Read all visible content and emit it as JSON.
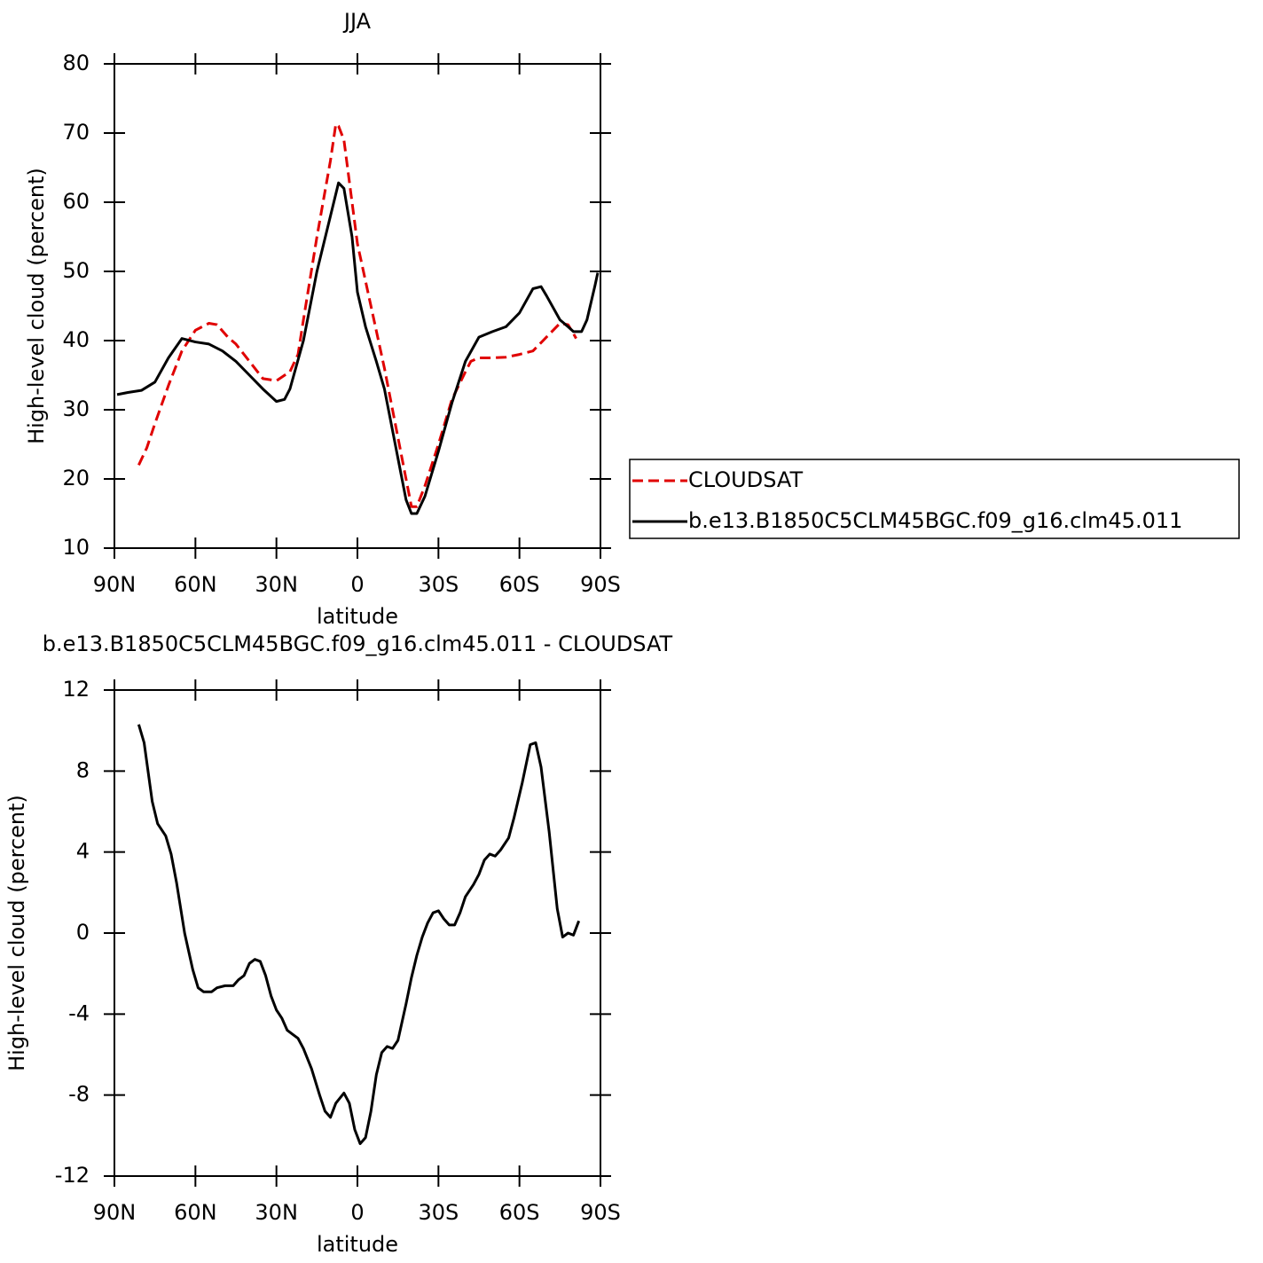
{
  "chart_data": [
    {
      "type": "line",
      "title": "JJA",
      "xlabel": "latitude",
      "ylabel": "High-level cloud (percent)",
      "xlim": [
        90,
        -90
      ],
      "xticks": [
        {
          "value": 90,
          "label": "90N"
        },
        {
          "value": 60,
          "label": "60N"
        },
        {
          "value": 30,
          "label": "30N"
        },
        0,
        {
          "value": -30,
          "label": "30S"
        },
        {
          "value": -60,
          "label": "60S"
        },
        {
          "value": -90,
          "label": "90S"
        }
      ],
      "ylim": [
        10,
        80
      ],
      "yticks": [
        10,
        20,
        30,
        40,
        50,
        60,
        70,
        80
      ],
      "legend": "right",
      "series": [
        {
          "name": "CLOUDSAT",
          "color": "#e00000",
          "dashed": true,
          "x": [
            81,
            78,
            75,
            70,
            65,
            60,
            55,
            52,
            48,
            45,
            40,
            35,
            30,
            25,
            22,
            20,
            15,
            10,
            8,
            7,
            5,
            2,
            0,
            -5,
            -10,
            -15,
            -18,
            -20,
            -22,
            -25,
            -30,
            -35,
            -40,
            -42,
            -45,
            -50,
            -55,
            -60,
            -65,
            -70,
            -75,
            -78,
            -80,
            -81
          ],
          "values": [
            22,
            24.5,
            28,
            33.5,
            38.5,
            41.5,
            42.5,
            42.3,
            40.5,
            39.5,
            37,
            34.5,
            34.2,
            35.5,
            38,
            43,
            55,
            66,
            71.3,
            71,
            69,
            60,
            54,
            45,
            36,
            26,
            20,
            16,
            16,
            19,
            25,
            31.5,
            35.5,
            37,
            37.5,
            37.5,
            37.6,
            38,
            38.5,
            40.5,
            42.5,
            42.3,
            41,
            40.3
          ]
        },
        {
          "name": "b.e13.B1850C5CLM45BGC.f09_g16.clm45.011",
          "color": "#000000",
          "dashed": false,
          "x": [
            89,
            85,
            80,
            75,
            70,
            65,
            60,
            55,
            50,
            45,
            40,
            35,
            30,
            27,
            25,
            20,
            15,
            10,
            7,
            5,
            2,
            0,
            -3,
            -7,
            -10,
            -13,
            -16,
            -18,
            -20,
            -22,
            -25,
            -30,
            -35,
            -40,
            -45,
            -50,
            -55,
            -60,
            -65,
            -68,
            -70,
            -75,
            -78,
            -80,
            -83,
            -85,
            -88,
            -89
          ],
          "values": [
            32.2,
            32.5,
            32.8,
            34,
            37.5,
            40.3,
            39.8,
            39.5,
            38.5,
            37,
            35,
            33,
            31.2,
            31.5,
            33,
            40,
            50,
            58,
            62.8,
            62,
            55,
            47,
            42,
            37,
            33,
            27,
            21,
            17,
            15,
            15,
            17.5,
            24,
            31,
            37,
            40.5,
            41.3,
            42,
            44,
            47.5,
            47.8,
            46.5,
            43,
            42,
            41.3,
            41.3,
            43,
            48,
            49.8
          ]
        }
      ]
    },
    {
      "type": "line",
      "title": "b.e13.B1850C5CLM45BGC.f09_g16.clm45.011 - CLOUDSAT",
      "xlabel": "latitude",
      "ylabel": "High-level cloud (percent)",
      "xlim": [
        90,
        -90
      ],
      "xticks": [
        {
          "value": 90,
          "label": "90N"
        },
        {
          "value": 60,
          "label": "60N"
        },
        {
          "value": 30,
          "label": "30N"
        },
        0,
        {
          "value": -30,
          "label": "30S"
        },
        {
          "value": -60,
          "label": "60S"
        },
        {
          "value": -90,
          "label": "90S"
        }
      ],
      "ylim": [
        -12,
        12
      ],
      "yticks": [
        -12,
        -8,
        -4,
        0,
        4,
        8,
        12
      ],
      "series": [
        {
          "color": "#000000",
          "dashed": false,
          "x": [
            81,
            79,
            76,
            74,
            71,
            69,
            67,
            64,
            61,
            59,
            57,
            54,
            52,
            49,
            46,
            44,
            42,
            40,
            38,
            36,
            34,
            32,
            30,
            28,
            26,
            24,
            22,
            20,
            17,
            14,
            12,
            10,
            8,
            5,
            3,
            1,
            -1,
            -3,
            -5,
            -7,
            -9,
            -11,
            -13,
            -15,
            -18,
            -20,
            -22,
            -24,
            -26,
            -28,
            -30,
            -32,
            -34,
            -36,
            -38,
            -40,
            -43,
            -45,
            -47,
            -49,
            -51,
            -53,
            -56,
            -58,
            -61,
            -64,
            -66,
            -68,
            -71,
            -74,
            -76,
            -78,
            -80,
            -82
          ],
          "values": [
            10.3,
            9.4,
            6.5,
            5.4,
            4.8,
            3.9,
            2.5,
            0,
            -1.8,
            -2.7,
            -2.9,
            -2.9,
            -2.7,
            -2.6,
            -2.6,
            -2.3,
            -2.1,
            -1.5,
            -1.3,
            -1.4,
            -2.1,
            -3.1,
            -3.8,
            -4.2,
            -4.8,
            -5,
            -5.2,
            -5.7,
            -6.7,
            -8,
            -8.8,
            -9.1,
            -8.4,
            -7.9,
            -8.4,
            -9.7,
            -10.4,
            -10.1,
            -8.8,
            -7,
            -5.9,
            -5.6,
            -5.7,
            -5.3,
            -3.5,
            -2.2,
            -1.1,
            -0.2,
            0.5,
            1,
            1.1,
            0.7,
            0.4,
            0.4,
            1,
            1.8,
            2.4,
            2.9,
            3.6,
            3.9,
            3.8,
            4.1,
            4.7,
            5.7,
            7.4,
            9.3,
            9.4,
            8.2,
            5,
            1.2,
            -0.2,
            0,
            -0.1,
            0.6
          ]
        }
      ]
    }
  ]
}
